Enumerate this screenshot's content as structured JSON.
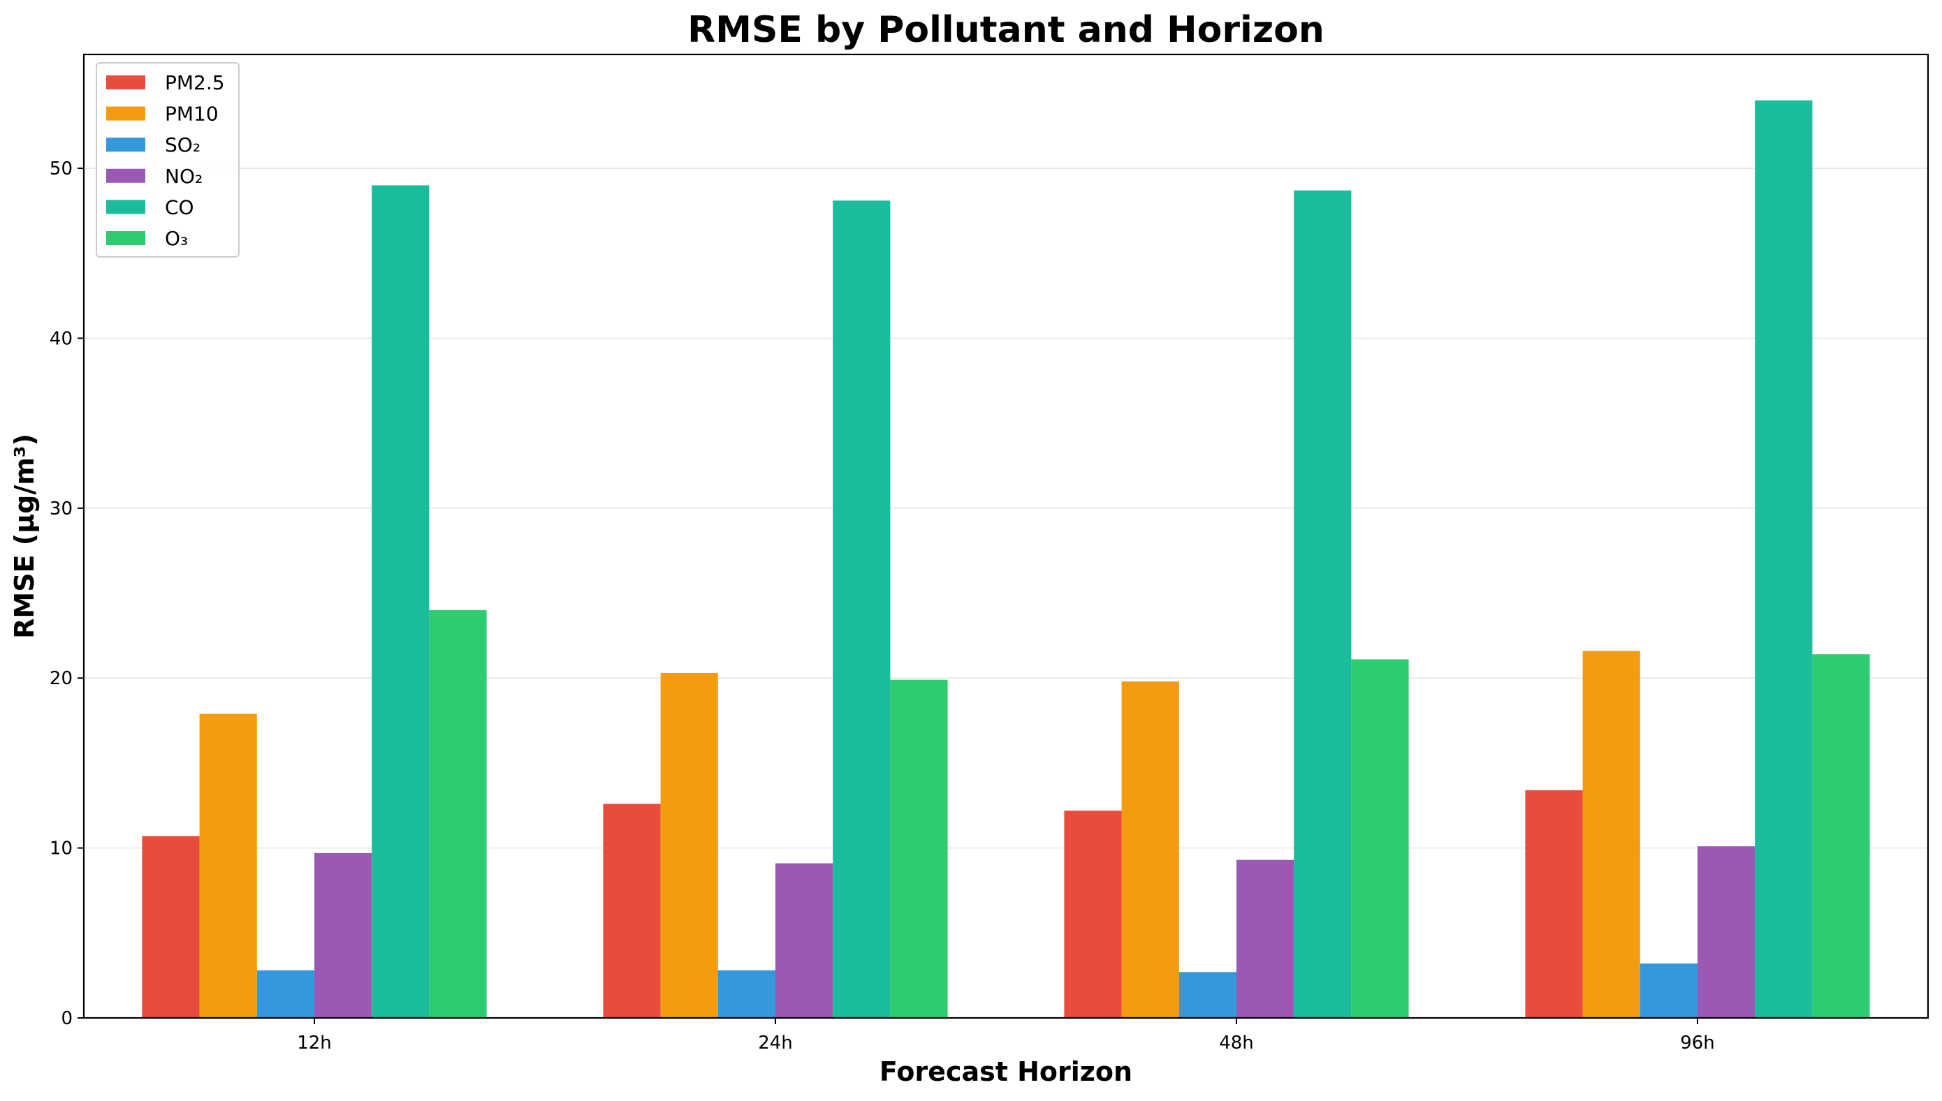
{
  "chart_data": {
    "type": "bar",
    "title": "RMSE by Pollutant and Horizon",
    "xlabel": "Forecast Horizon",
    "ylabel": "RMSE (μg/m³)",
    "categories": [
      "12h",
      "24h",
      "48h",
      "96h"
    ],
    "ylim": [
      0,
      56.7
    ],
    "yticks": [
      0,
      10,
      20,
      30,
      40,
      50
    ],
    "grid": "y",
    "legend_position": "top-left",
    "series": [
      {
        "name": "PM2.5",
        "color": "#e74c3c",
        "values": [
          10.7,
          12.6,
          12.2,
          13.4
        ]
      },
      {
        "name": "PM10",
        "color": "#f39c12",
        "values": [
          17.9,
          20.3,
          19.8,
          21.6
        ]
      },
      {
        "name": "SO₂",
        "color": "#3498db",
        "values": [
          2.8,
          2.8,
          2.7,
          3.2
        ]
      },
      {
        "name": "NO₂",
        "color": "#9b59b6",
        "values": [
          9.7,
          9.1,
          9.3,
          10.1
        ]
      },
      {
        "name": "CO",
        "color": "#1abc9c",
        "values": [
          49.0,
          48.1,
          48.7,
          54.0
        ]
      },
      {
        "name": "O₃",
        "color": "#2ecc71",
        "values": [
          24.0,
          19.9,
          21.1,
          21.4
        ]
      }
    ]
  }
}
